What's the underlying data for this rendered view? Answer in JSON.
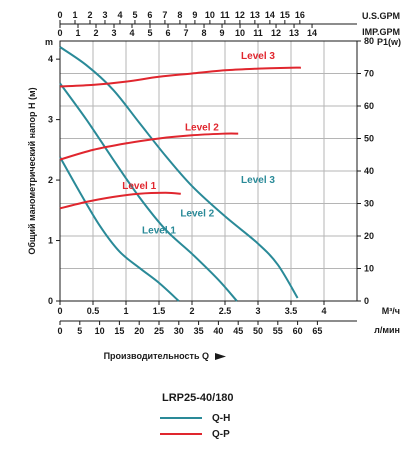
{
  "chart_data": {
    "type": "line",
    "title": "LRP25-40/180",
    "top_axes": [
      {
        "unit": "U.S.GPM",
        "ticks": [
          "0",
          "1",
          "2",
          "3",
          "4",
          "5",
          "6",
          "7",
          "8",
          "9",
          "10",
          "11",
          "12",
          "13",
          "14",
          "15",
          "16"
        ]
      },
      {
        "unit": "IMP.GPM",
        "ticks": [
          "0",
          "1",
          "2",
          "3",
          "4",
          "5",
          "6",
          "7",
          "8",
          "9",
          "10",
          "11",
          "12",
          "13",
          "14"
        ]
      }
    ],
    "left_axis": {
      "label": "Общий манометрический напор Н (м)",
      "unit": "m",
      "range": [
        0,
        4.3
      ],
      "ticks": [
        "0",
        "1",
        "2",
        "3",
        "4"
      ]
    },
    "right_axis": {
      "label": "P1(w)",
      "range": [
        0,
        80
      ],
      "ticks": [
        "0",
        "10",
        "20",
        "30",
        "40",
        "50",
        "60",
        "70",
        "80"
      ]
    },
    "bottom_axes": [
      {
        "unit": "М³/ч",
        "range": [
          0,
          4.5
        ],
        "ticks": [
          "0",
          "0.5",
          "1",
          "1.5",
          "2",
          "2.5",
          "3",
          "3.5",
          "4"
        ]
      },
      {
        "unit": "л/мин",
        "ticks": [
          "0",
          "5",
          "10",
          "15",
          "20",
          "25",
          "30",
          "35",
          "40",
          "45",
          "50",
          "55",
          "60",
          "65"
        ]
      }
    ],
    "xlabel": "Производительность Q",
    "colors": {
      "qh": "#2a8a98",
      "qp": "#e0262e",
      "grid": "#b5b5b5"
    },
    "series": [
      {
        "name": "Level 1",
        "kind": "Q-H",
        "x": [
          0,
          0.3,
          0.6,
          0.9,
          1.2,
          1.5,
          1.8
        ],
        "y": [
          2.38,
          1.8,
          1.25,
          0.82,
          0.55,
          0.3,
          0
        ]
      },
      {
        "name": "Level 2",
        "kind": "Q-H",
        "x": [
          0,
          0.4,
          0.8,
          1.2,
          1.6,
          2.0,
          2.4,
          2.68
        ],
        "y": [
          3.6,
          3.0,
          2.35,
          1.72,
          1.18,
          0.78,
          0.35,
          0
        ]
      },
      {
        "name": "Level 3",
        "kind": "Q-H",
        "x": [
          0,
          0.4,
          0.8,
          1.2,
          1.6,
          2.0,
          2.5,
          3.0,
          3.3,
          3.6
        ],
        "y": [
          4.2,
          3.9,
          3.5,
          2.95,
          2.4,
          1.9,
          1.4,
          0.95,
          0.6,
          0.05
        ]
      },
      {
        "name": "Level 1",
        "kind": "Q-P",
        "x": [
          0,
          0.4,
          0.8,
          1.2,
          1.6,
          1.83
        ],
        "y": [
          28.5,
          30.5,
          32,
          33,
          33.3,
          33
        ]
      },
      {
        "name": "Level 2",
        "kind": "Q-P",
        "x": [
          0,
          0.5,
          1.0,
          1.5,
          2.0,
          2.5,
          2.7
        ],
        "y": [
          43.5,
          46.5,
          48.5,
          50,
          51,
          51.5,
          51.5
        ]
      },
      {
        "name": "Level 3",
        "kind": "Q-P",
        "x": [
          0,
          0.5,
          1.0,
          1.5,
          2.0,
          2.5,
          3.0,
          3.5,
          3.65
        ],
        "y": [
          66,
          66.5,
          67.5,
          69,
          70,
          71,
          71.5,
          71.8,
          71.8
        ]
      }
    ],
    "curve_labels": [
      {
        "text": "Level 3",
        "kind": "Q-P",
        "x": 3.0,
        "y": 74.5
      },
      {
        "text": "Level 2",
        "kind": "Q-P",
        "x": 2.15,
        "y": 52.5
      },
      {
        "text": "Level 1",
        "kind": "Q-P",
        "x": 1.2,
        "y": 34.5
      },
      {
        "text": "Level 3",
        "kind": "Q-H",
        "x": 3.0,
        "y": 1.95
      },
      {
        "text": "Level 2",
        "kind": "Q-H",
        "x": 2.08,
        "y": 1.4
      },
      {
        "text": "Level 1",
        "kind": "Q-H",
        "x": 1.5,
        "y": 1.12
      }
    ],
    "legend": {
      "title": "LRP25-40/180",
      "entries": [
        {
          "label": "Q-H",
          "color": "#2a8a98"
        },
        {
          "label": "Q-P",
          "color": "#e0262e"
        }
      ]
    }
  }
}
